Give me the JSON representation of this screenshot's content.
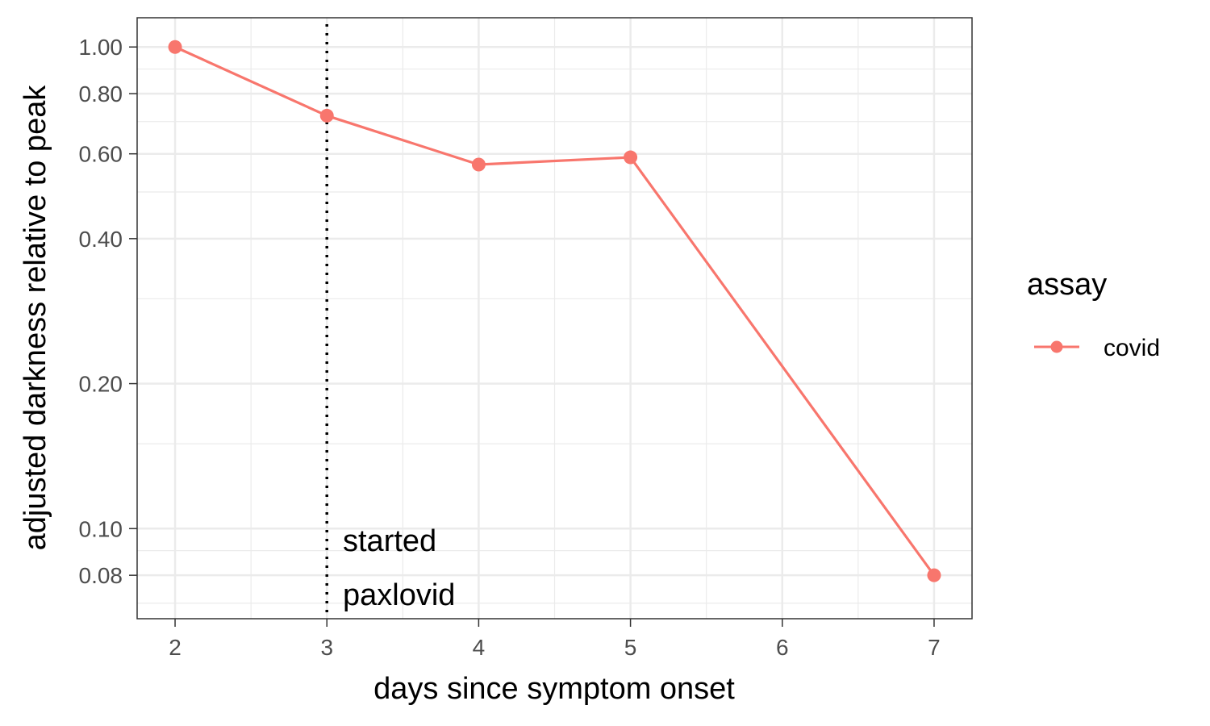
{
  "chart_data": {
    "type": "line",
    "title": "",
    "xlabel": "days since symptom onset",
    "ylabel": "adjusted darkness relative to peak",
    "y_scale": "log",
    "xlim": [
      1.75,
      7.25
    ],
    "ylim": [
      0.065,
      1.15
    ],
    "x_ticks": [
      2,
      3,
      4,
      5,
      6,
      7
    ],
    "x_tick_labels": [
      "2",
      "3",
      "4",
      "5",
      "6",
      "7"
    ],
    "y_ticks": [
      0.08,
      0.1,
      0.2,
      0.4,
      0.6,
      0.8,
      1.0
    ],
    "y_tick_labels": [
      "0.08",
      "0.10",
      "0.20",
      "0.40",
      "0.60",
      "0.80",
      "1.00"
    ],
    "grid": true,
    "legend": {
      "title": "assay",
      "position": "right"
    },
    "series": [
      {
        "name": "covid",
        "color": "#F8766D",
        "x": [
          2,
          3,
          4,
          5,
          7
        ],
        "y": [
          1.0,
          0.72,
          0.57,
          0.59,
          0.08
        ]
      }
    ],
    "vline": {
      "x": 3,
      "style": "dotted",
      "color": "#000000"
    },
    "annotation": {
      "x": 3,
      "lines": [
        "started",
        "paxlovid"
      ]
    }
  }
}
